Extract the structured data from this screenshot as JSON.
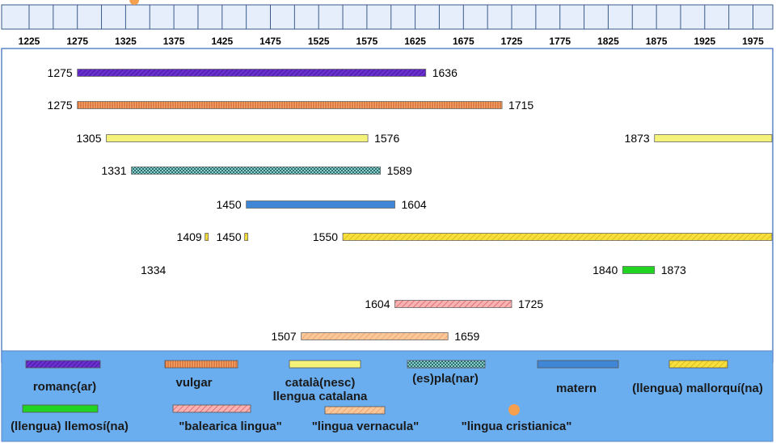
{
  "chart_data": {
    "type": "timeline",
    "x_range": [
      1200,
      2000
    ],
    "x_ticks": [
      1225,
      1275,
      1325,
      1375,
      1425,
      1475,
      1525,
      1575,
      1625,
      1675,
      1725,
      1775,
      1825,
      1875,
      1925,
      1975
    ],
    "series": [
      {
        "name": "romanç(ar)",
        "color": "#6a2fd0",
        "pattern": "hatch-dark",
        "spans": [
          [
            1275,
            1636
          ]
        ]
      },
      {
        "name": "vulgar",
        "color": "#e8843a",
        "pattern": "vertical-lines",
        "spans": [
          [
            1275,
            1715
          ]
        ]
      },
      {
        "name": "català(nesc)\nllengua catalana",
        "color": "#f5f27a",
        "pattern": "solid",
        "spans": [
          [
            1305,
            1576
          ],
          [
            1873,
            2000
          ]
        ]
      },
      {
        "name": "(es)pla(nar)",
        "color": "#3b8a8a",
        "pattern": "checker",
        "spans": [
          [
            1331,
            1589
          ]
        ]
      },
      {
        "name": "matern",
        "color": "#3f86d6",
        "pattern": "solid",
        "spans": [
          [
            1450,
            1604
          ]
        ]
      },
      {
        "name": "(llengua) mallorquí(na)",
        "color": "#f4d92c",
        "pattern": "hatch-light",
        "spans": [
          [
            1409,
            1409
          ],
          [
            1450,
            1450
          ],
          [
            1550,
            2000
          ]
        ]
      },
      {
        "name": "(llengua) llemosí(na)",
        "color": "#22d322",
        "pattern": "solid",
        "spans": [
          [
            1840,
            1873
          ]
        ]
      },
      {
        "name": "\"balearica lingua\"",
        "color": "#f29a9a",
        "pattern": "hatch-red",
        "spans": [
          [
            1604,
            1725
          ]
        ]
      },
      {
        "name": "\"lingua vernacula\"",
        "color": "#f7bd8a",
        "pattern": "hatch-orange",
        "spans": [
          [
            1507,
            1659
          ]
        ]
      },
      {
        "name": "\"lingua cristianica\"",
        "color": "#f5a04e",
        "pattern": "dot",
        "spans": [
          [
            1334,
            1334
          ]
        ]
      }
    ],
    "labels": [
      {
        "row": 0,
        "text": "1275",
        "year": 1275,
        "side": "left"
      },
      {
        "row": 0,
        "text": "1636",
        "year": 1636,
        "side": "right"
      },
      {
        "row": 1,
        "text": "1275",
        "year": 1275,
        "side": "left"
      },
      {
        "row": 1,
        "text": "1715",
        "year": 1715,
        "side": "right"
      },
      {
        "row": 2,
        "text": "1305",
        "year": 1305,
        "side": "left"
      },
      {
        "row": 2,
        "text": "1576",
        "year": 1576,
        "side": "right"
      },
      {
        "row": 2,
        "text": "1873",
        "year": 1873,
        "side": "left"
      },
      {
        "row": 3,
        "text": "1331",
        "year": 1331,
        "side": "left"
      },
      {
        "row": 3,
        "text": "1589",
        "year": 1589,
        "side": "right"
      },
      {
        "row": 4,
        "text": "1450",
        "year": 1450,
        "side": "left"
      },
      {
        "row": 4,
        "text": "1604",
        "year": 1604,
        "side": "right"
      },
      {
        "row": 5,
        "text": "1409",
        "year": 1409,
        "side": "left"
      },
      {
        "row": 5,
        "text": "1450",
        "year": 1450,
        "side": "left"
      },
      {
        "row": 5,
        "text": "1550",
        "year": 1550,
        "side": "left"
      },
      {
        "row": 6,
        "text": "1334",
        "year": 1334,
        "side": "right"
      },
      {
        "row": 6,
        "text": "1840",
        "year": 1840,
        "side": "left"
      },
      {
        "row": 6,
        "text": "1873",
        "year": 1873,
        "side": "right"
      },
      {
        "row": 7,
        "text": "1604",
        "year": 1604,
        "side": "left"
      },
      {
        "row": 7,
        "text": "1725",
        "year": 1725,
        "side": "right"
      },
      {
        "row": 8,
        "text": "1507",
        "year": 1507,
        "side": "left"
      },
      {
        "row": 8,
        "text": "1659",
        "year": 1659,
        "side": "right"
      }
    ],
    "legend_position": "bottom",
    "colors": {
      "legend_bg": "#6aaef0",
      "ruler_bg": "#e6eefc",
      "plot_border": "#5a86c7"
    }
  }
}
